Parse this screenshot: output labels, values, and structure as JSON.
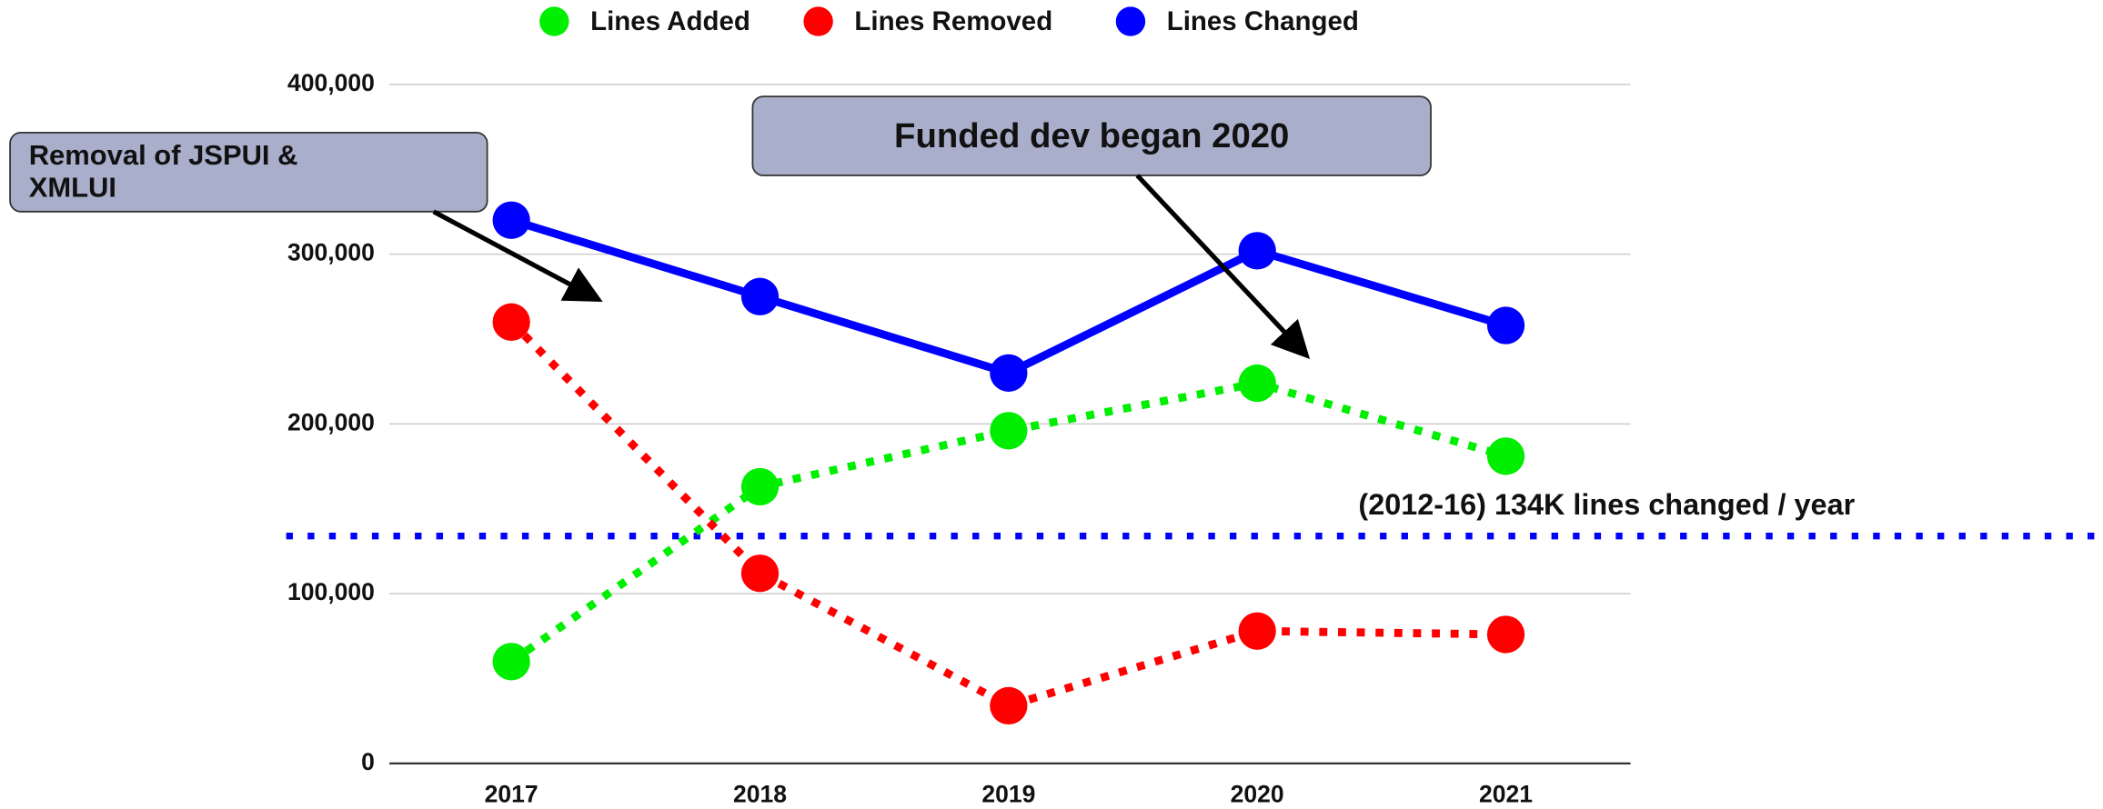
{
  "chart_data": {
    "type": "line",
    "categories": [
      "2017",
      "2018",
      "2019",
      "2020",
      "2021"
    ],
    "series": [
      {
        "name": "Lines Added",
        "color": "#00ee00",
        "line_style": "dotted",
        "values": [
          60000,
          163000,
          196000,
          224000,
          181000
        ]
      },
      {
        "name": "Lines Removed",
        "color": "#ff0000",
        "line_style": "dotted",
        "values": [
          260000,
          112000,
          34000,
          78000,
          76000
        ]
      },
      {
        "name": "Lines Changed",
        "color": "#0000ff",
        "line_style": "solid",
        "values": [
          320000,
          275000,
          230000,
          302000,
          258000
        ]
      }
    ],
    "ylim": [
      0,
      400000
    ],
    "yticks": [
      0,
      {
        "value": 100000,
        "label": "100,000"
      },
      {
        "value": 200000,
        "label": "200,000"
      },
      {
        "value": 300000,
        "label": "300,000"
      },
      {
        "value": 400000,
        "label": "400,000"
      }
    ],
    "grid": true,
    "legend": "top",
    "reference_line": {
      "value": 134000,
      "color": "#0000ff",
      "label": "(2012-16) 134K lines changed / year"
    },
    "annotations": [
      {
        "text": "Removal of JSPUI & XMLUI"
      },
      {
        "text": "Funded dev began 2020"
      }
    ]
  }
}
